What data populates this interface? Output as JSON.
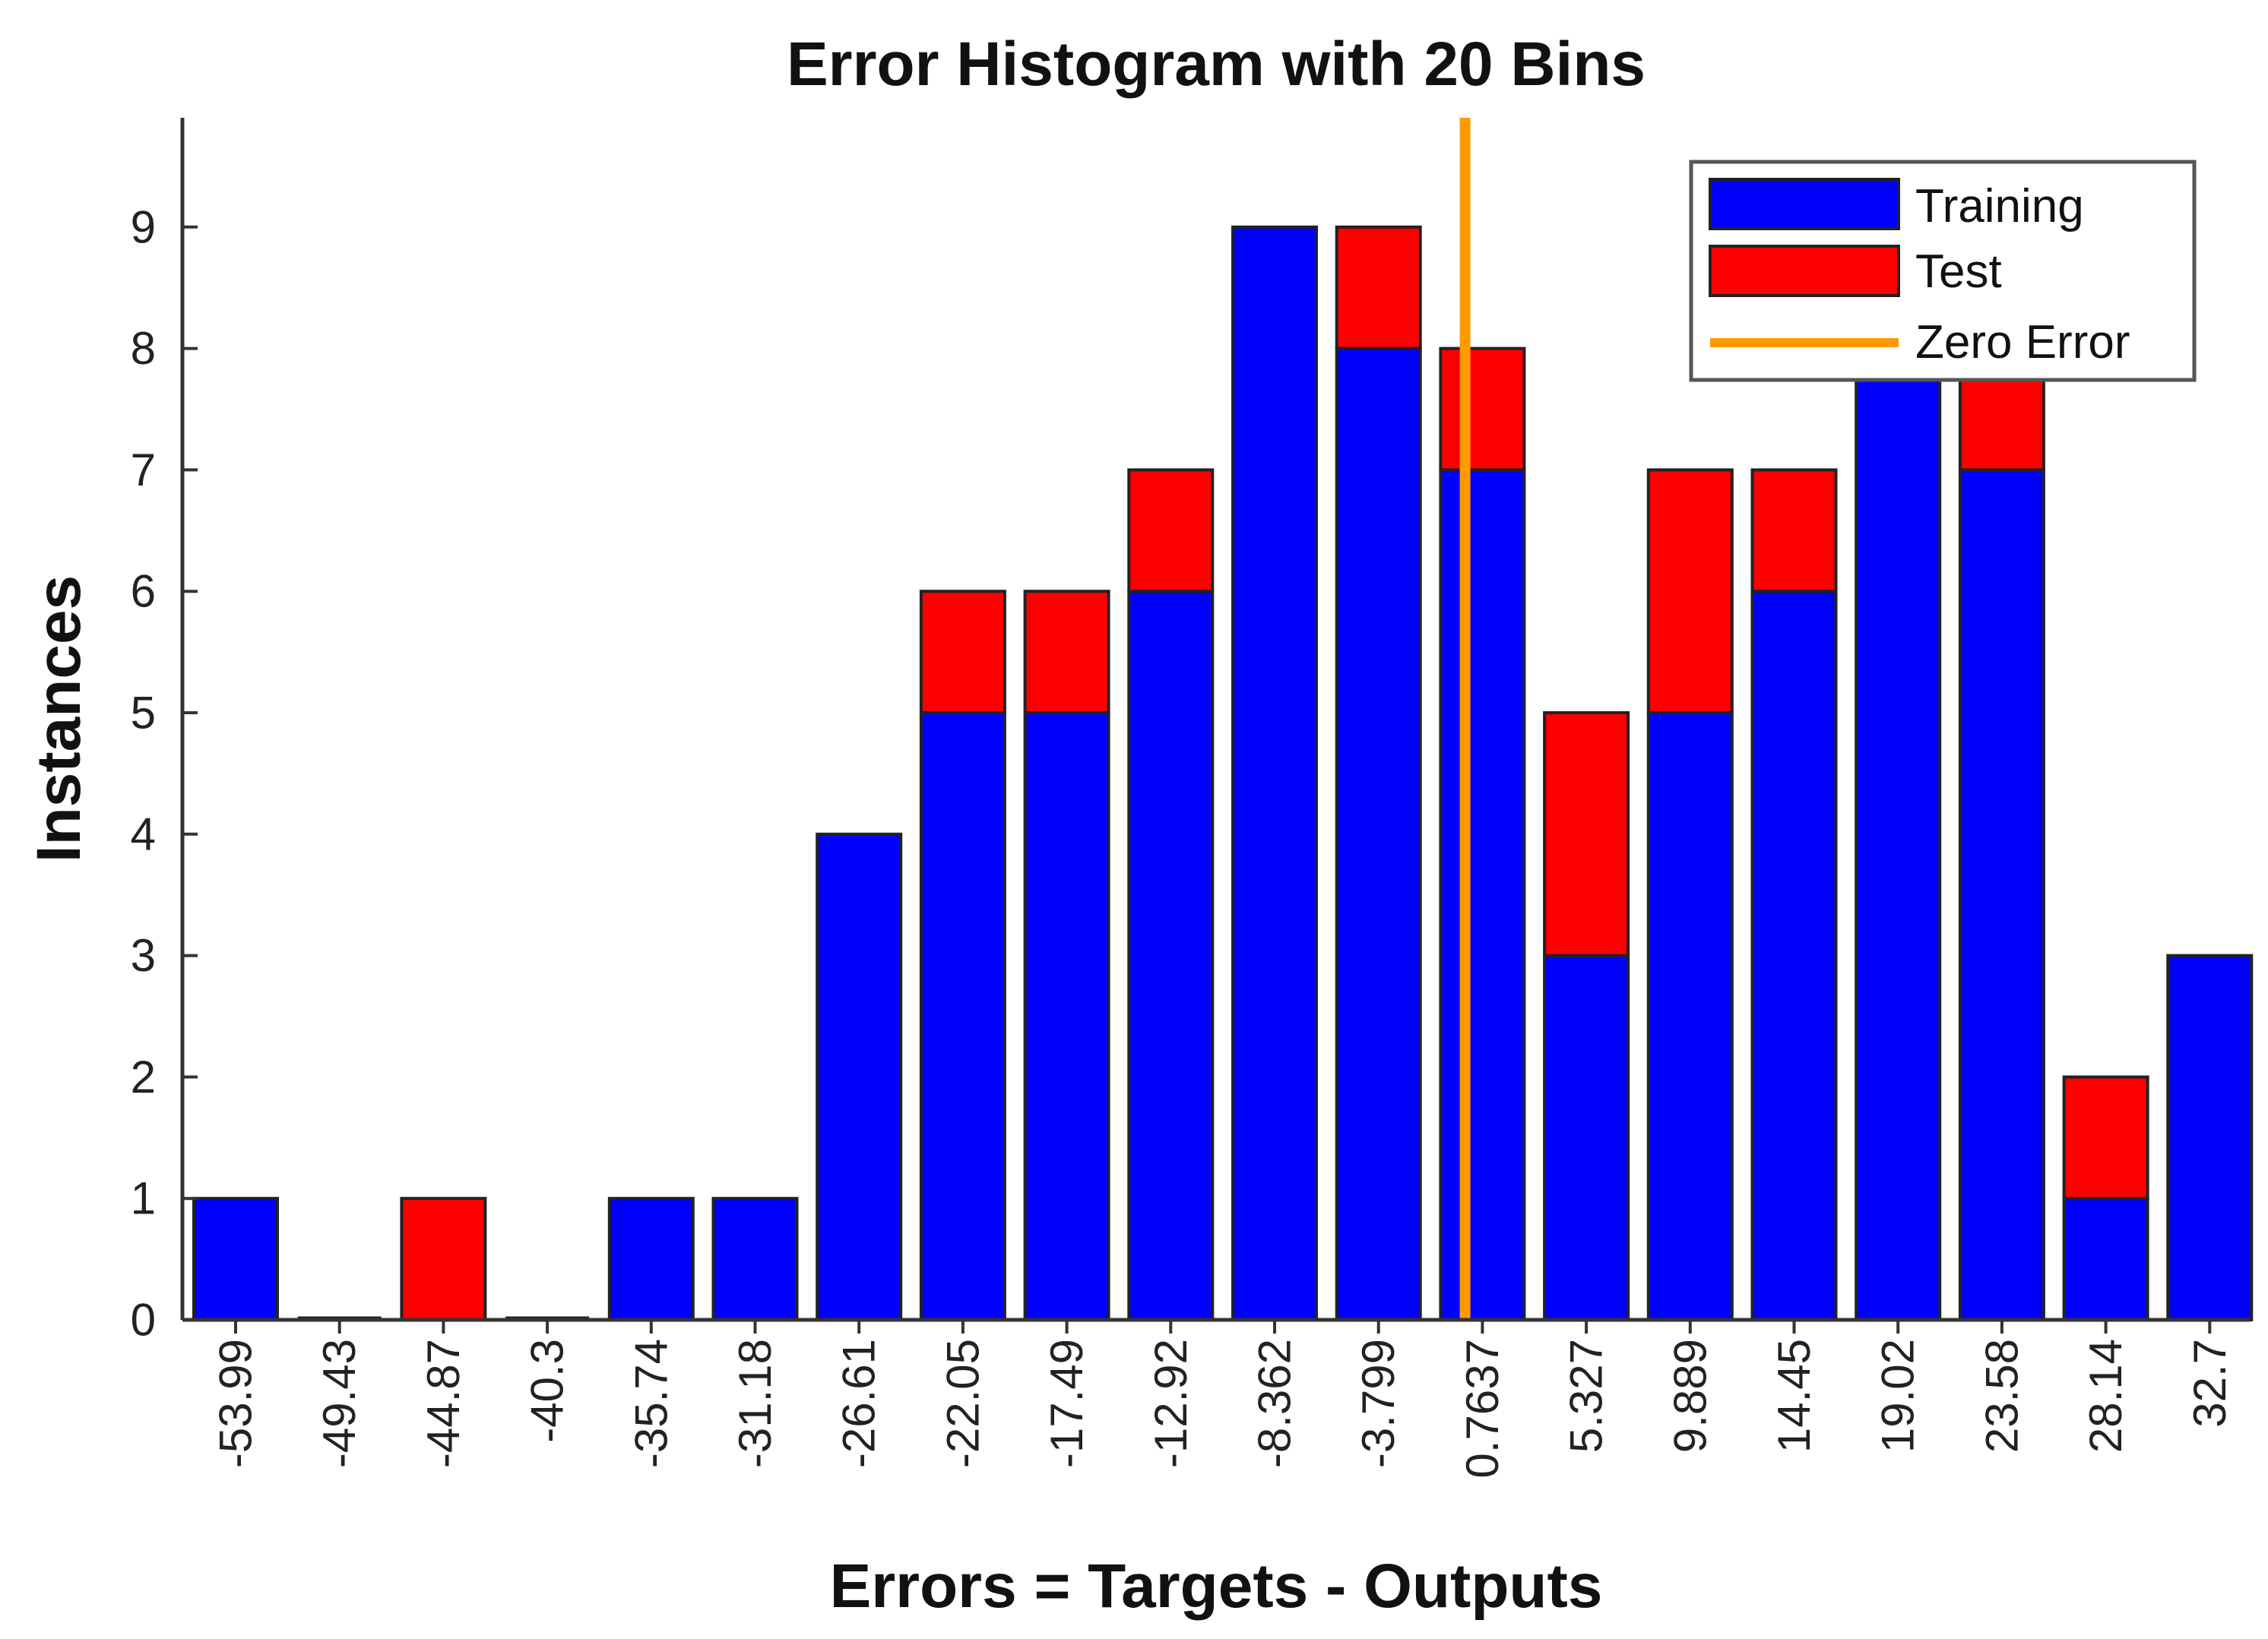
{
  "chart_data": {
    "type": "bar",
    "stacked": true,
    "title": "Error Histogram with 20 Bins",
    "xlabel": "Errors = Targets - Outputs",
    "ylabel": "Instances",
    "categories": [
      "-53.99",
      "-49.43",
      "-44.87",
      "-40.3",
      "-35.74",
      "-31.18",
      "-26.61",
      "-22.05",
      "-17.49",
      "-12.92",
      "-8.362",
      "-3.799",
      "0.7637",
      "5.327",
      "9.889",
      "14.45",
      "19.02",
      "23.58",
      "28.14",
      "32.7"
    ],
    "series": [
      {
        "name": "Training",
        "color": "#0000ff",
        "values": [
          1,
          0,
          0,
          0,
          1,
          1,
          4,
          5,
          5,
          6,
          9,
          8,
          7,
          3,
          5,
          6,
          8,
          7,
          1,
          3
        ]
      },
      {
        "name": "Test",
        "color": "#ff0000",
        "values": [
          0,
          0,
          1,
          0,
          0,
          0,
          0,
          1,
          1,
          1,
          0,
          1,
          1,
          2,
          2,
          1,
          0,
          1,
          1,
          0
        ]
      }
    ],
    "zero_error": {
      "name": "Zero Error",
      "color": "#ff9900",
      "x": 0
    },
    "yticks": [
      "0",
      "1",
      "2",
      "3",
      "4",
      "5",
      "6",
      "7",
      "8",
      "9"
    ],
    "ylim": [
      0,
      9.9
    ],
    "legend_position": "top-right",
    "grid": false
  }
}
